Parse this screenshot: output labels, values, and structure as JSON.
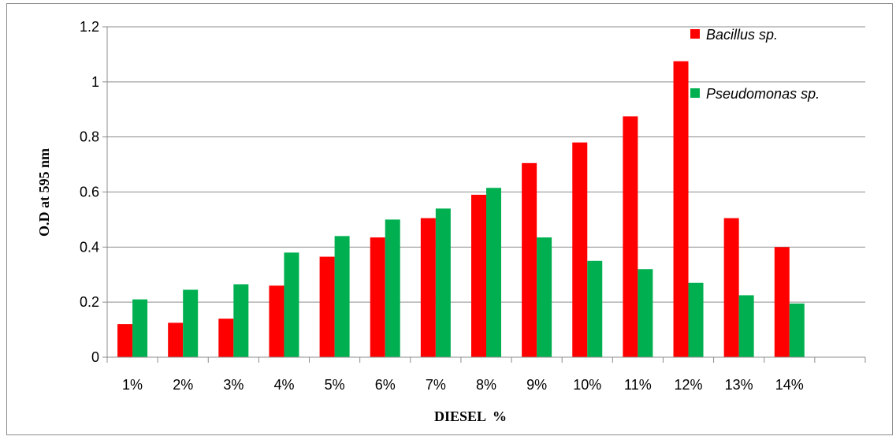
{
  "chart_data": {
    "type": "bar",
    "categories": [
      "1%",
      "2%",
      "3%",
      "4%",
      "5%",
      "6%",
      "7%",
      "8%",
      "9%",
      "10%",
      "11%",
      "12%",
      "13%",
      "14%",
      ""
    ],
    "series": [
      {
        "name": "Bacillus sp.",
        "color": "#ff0000",
        "values": [
          0.12,
          0.125,
          0.14,
          0.26,
          0.365,
          0.435,
          0.505,
          0.59,
          0.705,
          0.78,
          0.875,
          1.075,
          0.505,
          0.4,
          null
        ]
      },
      {
        "name": "Pseudomonas sp.",
        "color": "#00b050",
        "values": [
          0.21,
          0.245,
          0.265,
          0.38,
          0.44,
          0.5,
          0.54,
          0.615,
          0.435,
          0.35,
          0.32,
          0.27,
          0.225,
          0.195,
          null
        ]
      }
    ],
    "yticks": [
      "0",
      "0.2",
      "0.4",
      "0.6",
      "0.8",
      "1",
      "1.2"
    ],
    "ylim": [
      0,
      1.2
    ],
    "xlabel": "DIESEL  %",
    "ylabel": "O.D at  595 nm",
    "grid": true,
    "legend_position": "top-right"
  }
}
